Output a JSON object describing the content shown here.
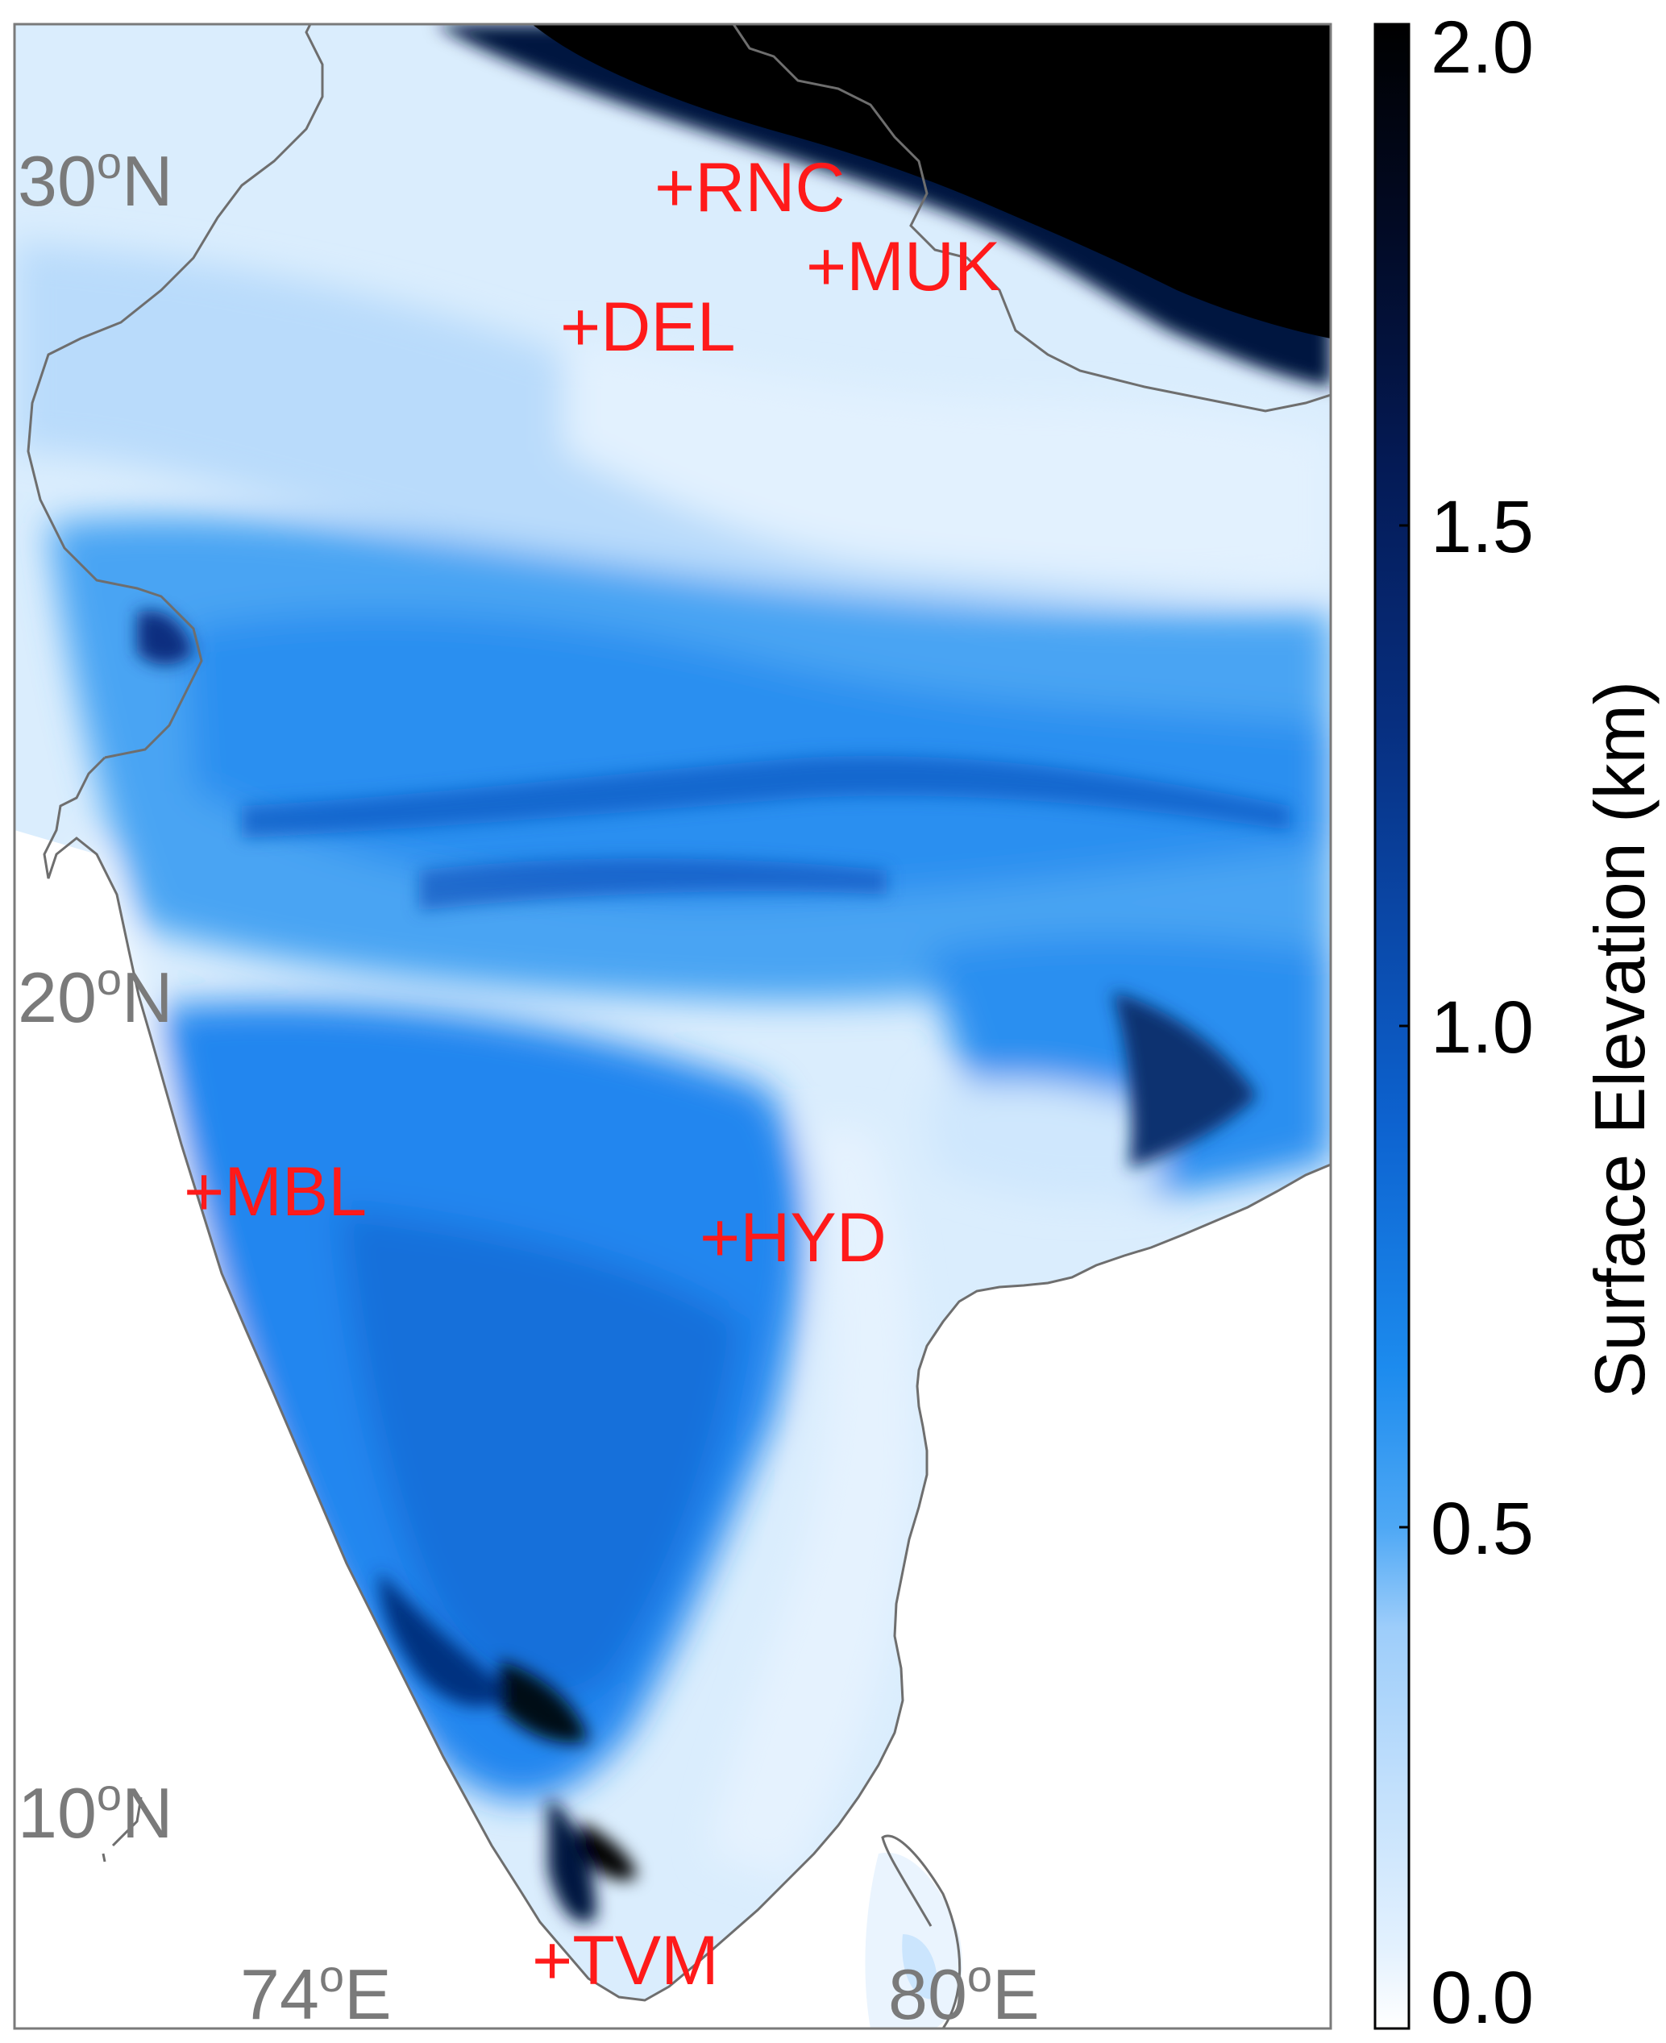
{
  "map": {
    "latitude_labels": [
      {
        "deg": "30",
        "sup": "o",
        "hem": "N"
      },
      {
        "deg": "20",
        "sup": "o",
        "hem": "N"
      },
      {
        "deg": "10",
        "sup": "o",
        "hem": "N"
      }
    ],
    "longitude_labels": [
      {
        "deg": "74",
        "sup": "o",
        "hem": "E"
      },
      {
        "deg": "80",
        "sup": "o",
        "hem": "E"
      }
    ],
    "stations": [
      "+RNC",
      "+MUK",
      "+DEL",
      "+MBL",
      "+HYD",
      "+TVM"
    ],
    "station_color": "#ff1a1a",
    "graticule_label_color": "#7a7a7a",
    "coastline_color": "#6e6e6e",
    "frame_color": "#7a7a7a"
  },
  "colorbar": {
    "title": "Surface Elevation (km)",
    "ticks": [
      "2.0",
      "1.5",
      "1.0",
      "0.5",
      "0.0"
    ],
    "range_km": [
      0.0,
      2.0
    ],
    "colors_low_to_high": [
      "#ffffff",
      "#d7ebfd",
      "#b6dafc",
      "#8cc6fa",
      "#4ea8f5",
      "#1c8bee",
      "#0f6cd6",
      "#0a51b3",
      "#083a8f",
      "#052466",
      "#03123d",
      "#000000"
    ]
  }
}
